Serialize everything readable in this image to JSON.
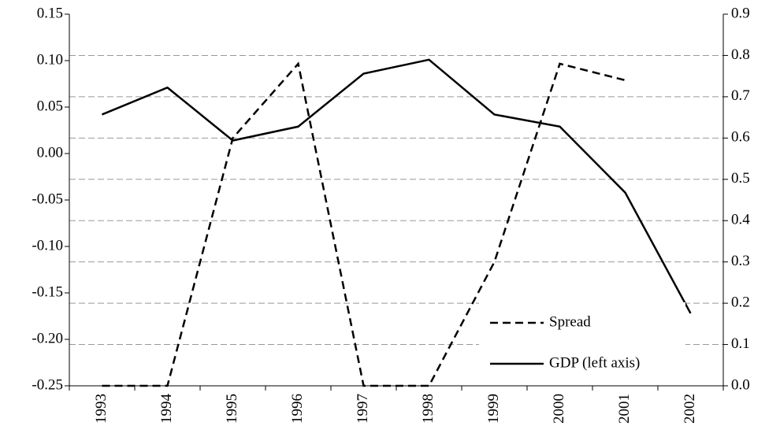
{
  "chart_data": {
    "type": "line",
    "categories": [
      "1993",
      "1994",
      "1995",
      "1996",
      "1997",
      "1998",
      "1999",
      "2000",
      "2001",
      "2002"
    ],
    "series": [
      {
        "name": "Spread",
        "color": "#000000",
        "dash": true,
        "axis": "y2",
        "values": [
          0.0,
          0.0,
          0.6,
          0.78,
          0.0,
          0.0,
          0.3,
          0.78,
          0.74,
          null
        ]
      },
      {
        "name": "GDP (left axis)",
        "color": "#000000",
        "dash": false,
        "axis": "y",
        "values": [
          0.042,
          0.071,
          0.014,
          0.029,
          0.086,
          0.101,
          0.042,
          0.029,
          -0.042,
          -0.172
        ]
      }
    ],
    "ylim": [
      -0.25,
      0.15
    ],
    "yticks": [
      {
        "value": -0.25,
        "label": "-0.25"
      },
      {
        "value": -0.2,
        "label": "-0.20"
      },
      {
        "value": -0.15,
        "label": "-0.15"
      },
      {
        "value": -0.1,
        "label": "-0.10"
      },
      {
        "value": -0.05,
        "label": "-0.05"
      },
      {
        "value": 0,
        "label": "0.00"
      },
      {
        "value": 0.05,
        "label": "0.05"
      },
      {
        "value": 0.1,
        "label": "0.10"
      },
      {
        "value": 0.15,
        "label": "0.15"
      }
    ],
    "y2lim": [
      0,
      0.9
    ],
    "y2ticks": [
      {
        "value": 0,
        "label": "0.0"
      },
      0.1,
      0.2,
      0.3,
      0.4,
      0.5,
      0.6,
      0.7,
      0.8,
      0.9
    ],
    "grid": true,
    "legend": "lower right"
  }
}
